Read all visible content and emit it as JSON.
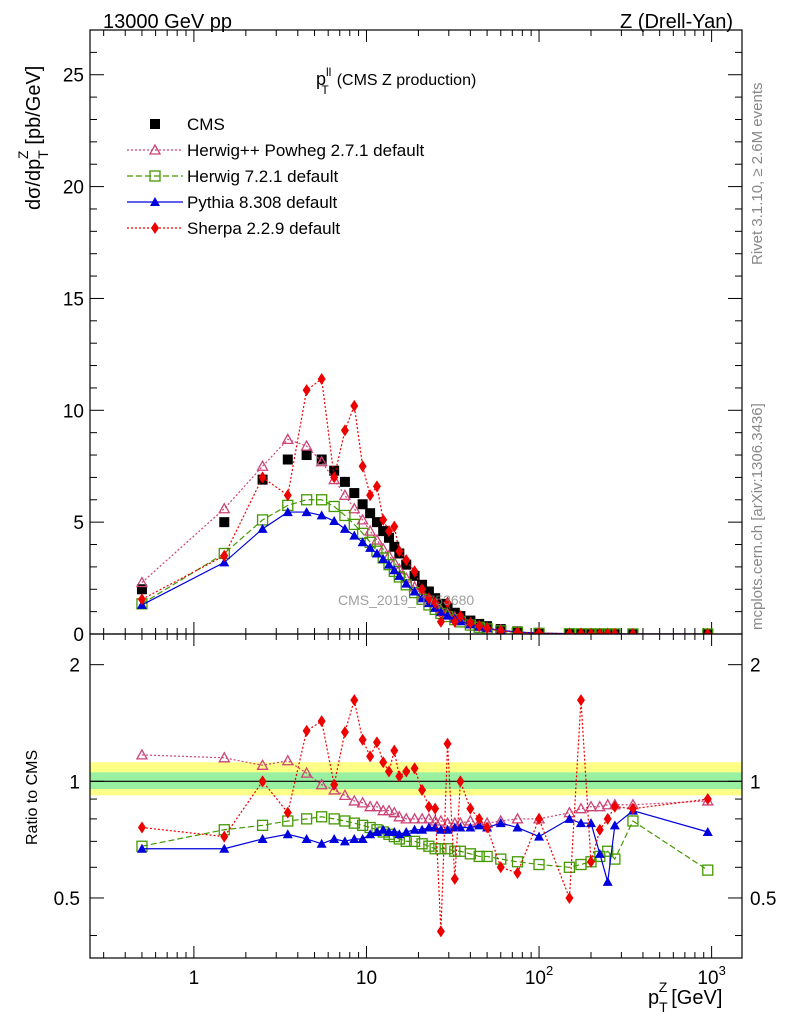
{
  "header": {
    "left": "13000 GeV pp",
    "right": "Z (Drell-Yan)"
  },
  "side_text": {
    "rivet": "Rivet 3.1.10, ≥ 2.6M events",
    "mcplots": "mcplots.cern.ch [arXiv:1306.3436]"
  },
  "plot_title": {
    "main": "p",
    "sup": "ll",
    "sub": "T",
    "rest": "(CMS Z production)"
  },
  "watermark": "CMS_2019_I1753680",
  "axes": {
    "main_ylabel": "dσ/dp",
    "main_ylabel_sub": "T",
    "main_ylabel_sup": "Z",
    "main_ylabel_unit": "[pb/GeV]",
    "ratio_ylabel": "Ratio to CMS",
    "xlabel": "p",
    "xlabel_sub": "T",
    "xlabel_sup": "Z",
    "xlabel_unit": "[GeV]",
    "main_yticks": [
      "0",
      "5",
      "10",
      "15",
      "20",
      "25"
    ],
    "ratio_yticks": [
      "0.5",
      "1",
      "2"
    ],
    "x_decade_labels": [
      "1",
      "10",
      "10",
      "10"
    ],
    "x_decade_sups": [
      "",
      "",
      "2",
      "3"
    ]
  },
  "legend": [
    {
      "label": "CMS"
    },
    {
      "label": "Herwig++ Powheg 2.7.1 default"
    },
    {
      "label": "Herwig 7.2.1 default"
    },
    {
      "label": "Pythia 8.308 default"
    },
    {
      "label": "Sherpa 2.2.9 default"
    }
  ],
  "chart_data": {
    "type": "scatter",
    "x_scale": "log",
    "xlim": [
      0.25,
      1500
    ],
    "main_ylim": [
      0,
      27
    ],
    "ratio_ylim": [
      0.35,
      2.4
    ],
    "ratio_scale": "log",
    "x": [
      0.5,
      1.5,
      2.5,
      3.5,
      4.5,
      5.5,
      6.5,
      7.5,
      8.5,
      9.5,
      10.5,
      11.5,
      12.5,
      13.5,
      14.5,
      15.5,
      17,
      19,
      21,
      23,
      25,
      27,
      29.5,
      32.5,
      35,
      40,
      45,
      50,
      60,
      75,
      100,
      150,
      175,
      200,
      225,
      250,
      275,
      350,
      950
    ],
    "series": [
      {
        "name": "CMS",
        "color": "#000000",
        "marker": "square",
        "line": "none",
        "values": [
          2.0,
          5.0,
          6.9,
          7.8,
          8.0,
          7.8,
          7.3,
          6.8,
          6.3,
          5.8,
          5.4,
          5.0,
          4.6,
          4.3,
          3.9,
          3.6,
          3.1,
          2.6,
          2.2,
          1.9,
          1.6,
          1.35,
          1.15,
          0.95,
          0.8,
          0.6,
          0.45,
          0.35,
          0.22,
          0.12,
          0.05,
          0.02,
          0.015,
          0.01,
          0.008,
          0.006,
          0.005,
          0.002,
          0.0003
        ]
      },
      {
        "name": "Herwig++ Powheg 2.7.1 default",
        "color": "#cc4477",
        "marker": "triangle-open",
        "line": "dotted",
        "values": [
          2.3,
          5.6,
          7.5,
          8.7,
          8.4,
          7.7,
          6.9,
          6.2,
          5.6,
          5.1,
          4.6,
          4.2,
          3.8,
          3.5,
          3.2,
          2.9,
          2.5,
          2.1,
          1.75,
          1.5,
          1.28,
          1.07,
          0.9,
          0.75,
          0.62,
          0.47,
          0.35,
          0.27,
          0.17,
          0.095,
          0.04,
          0.016,
          0.012,
          0.008,
          0.006,
          0.005,
          0.004,
          0.0016,
          0.00025
        ]
      },
      {
        "name": "Herwig 7.2.1 default",
        "color": "#449900",
        "marker": "square-open",
        "line": "dashed",
        "values": [
          1.35,
          3.6,
          5.1,
          5.75,
          6.0,
          6.0,
          5.7,
          5.3,
          4.9,
          4.5,
          4.1,
          3.7,
          3.4,
          3.1,
          2.8,
          2.55,
          2.2,
          1.85,
          1.55,
          1.3,
          1.1,
          0.92,
          0.78,
          0.64,
          0.54,
          0.4,
          0.3,
          0.23,
          0.14,
          0.075,
          0.03,
          0.012,
          0.009,
          0.006,
          0.005,
          0.004,
          0.0032,
          0.0016,
          0.00018
        ]
      },
      {
        "name": "Pythia 8.308 default",
        "color": "#0000dd",
        "marker": "triangle",
        "line": "solid",
        "values": [
          1.3,
          3.2,
          4.7,
          5.45,
          5.45,
          5.3,
          5.05,
          4.7,
          4.4,
          4.1,
          3.85,
          3.6,
          3.35,
          3.1,
          2.85,
          2.6,
          2.25,
          1.9,
          1.6,
          1.38,
          1.17,
          0.98,
          0.82,
          0.68,
          0.57,
          0.43,
          0.33,
          0.26,
          0.16,
          0.088,
          0.037,
          0.016,
          0.011,
          0.007,
          0.004,
          0.005,
          0.004,
          0.0017,
          0.00022
        ]
      },
      {
        "name": "Sherpa 2.2.9 default",
        "color": "#ee0000",
        "marker": "diamond",
        "line": "dotted",
        "values": [
          1.55,
          3.5,
          7.0,
          6.2,
          10.9,
          11.4,
          7.0,
          9.1,
          10.2,
          7.5,
          6.2,
          6.6,
          5.1,
          4.6,
          4.8,
          3.7,
          3.3,
          2.8,
          2.0,
          1.6,
          1.4,
          0.55,
          1.4,
          0.55,
          0.8,
          0.5,
          0.36,
          0.26,
          0.13,
          0.07,
          0.04,
          0.01,
          0.025,
          0.005,
          0.006,
          0.005,
          0.004,
          0.0017,
          0.0002
        ]
      }
    ],
    "ratio_series": [
      {
        "name": "Herwig++ Powheg 2.7.1 default",
        "values": [
          1.17,
          1.15,
          1.1,
          1.13,
          1.05,
          0.98,
          0.95,
          0.92,
          0.89,
          0.88,
          0.86,
          0.86,
          0.84,
          0.84,
          0.83,
          0.81,
          0.8,
          0.8,
          0.8,
          0.8,
          0.79,
          0.79,
          0.78,
          0.78,
          0.78,
          0.79,
          0.78,
          0.78,
          0.79,
          0.8,
          0.8,
          0.83,
          0.85,
          0.86,
          0.86,
          0.87,
          0.87,
          0.87,
          0.89
        ]
      },
      {
        "name": "Herwig 7.2.1 default",
        "values": [
          0.68,
          0.75,
          0.77,
          0.79,
          0.8,
          0.81,
          0.8,
          0.79,
          0.78,
          0.77,
          0.76,
          0.75,
          0.74,
          0.73,
          0.72,
          0.71,
          0.7,
          0.7,
          0.69,
          0.68,
          0.67,
          0.67,
          0.67,
          0.66,
          0.66,
          0.65,
          0.64,
          0.64,
          0.63,
          0.62,
          0.61,
          0.6,
          0.61,
          0.62,
          0.64,
          0.66,
          0.63,
          0.79,
          0.59
        ]
      },
      {
        "name": "Pythia 8.308 default",
        "values": [
          0.67,
          0.67,
          0.71,
          0.73,
          0.71,
          0.69,
          0.71,
          0.7,
          0.71,
          0.71,
          0.73,
          0.74,
          0.75,
          0.74,
          0.74,
          0.73,
          0.74,
          0.75,
          0.75,
          0.76,
          0.76,
          0.75,
          0.75,
          0.76,
          0.76,
          0.76,
          0.77,
          0.76,
          0.78,
          0.76,
          0.72,
          0.8,
          0.78,
          0.78,
          0.65,
          0.55,
          0.77,
          0.84,
          0.74
        ]
      },
      {
        "name": "Sherpa 2.2.9 default",
        "values": [
          0.76,
          0.72,
          1.0,
          0.83,
          1.35,
          1.43,
          0.98,
          1.34,
          1.62,
          1.28,
          1.16,
          1.26,
          1.12,
          1.06,
          1.2,
          1.03,
          1.06,
          1.08,
          0.95,
          0.86,
          0.85,
          0.41,
          1.25,
          0.56,
          1.0,
          0.85,
          0.8,
          0.76,
          0.6,
          0.58,
          0.8,
          0.5,
          1.62,
          0.62,
          0.75,
          0.8,
          0.86,
          0.85,
          0.9
        ]
      }
    ]
  }
}
